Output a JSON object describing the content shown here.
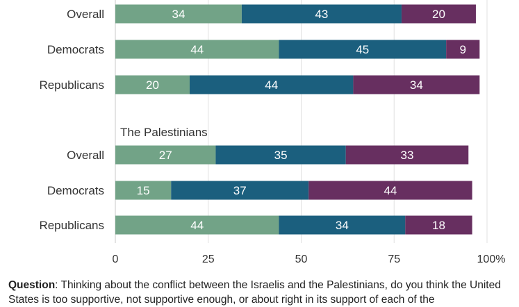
{
  "chart_data": {
    "type": "bar",
    "orientation": "horizontal",
    "stacked": true,
    "xlim": [
      0,
      100
    ],
    "ticks": [
      "0",
      "25",
      "50",
      "75",
      "100%"
    ],
    "tick_values": [
      0,
      25,
      50,
      75,
      100
    ],
    "series_colors": [
      "#72a387",
      "#1b5f7e",
      "#672f60"
    ],
    "groups": [
      {
        "title": "",
        "rows": [
          {
            "category": "Overall",
            "values": [
              34,
              43,
              20
            ]
          },
          {
            "category": "Democrats",
            "values": [
              44,
              45,
              9
            ]
          },
          {
            "category": "Republicans",
            "values": [
              20,
              44,
              34
            ]
          }
        ]
      },
      {
        "title": "The Palestinians",
        "rows": [
          {
            "category": "Overall",
            "values": [
              27,
              35,
              33
            ]
          },
          {
            "category": "Democrats",
            "values": [
              15,
              37,
              44
            ]
          },
          {
            "category": "Republicans",
            "values": [
              44,
              34,
              18
            ]
          }
        ]
      }
    ]
  },
  "caption": {
    "label": "Question",
    "text": ": Thinking about the conflict between the Israelis and the Palestinians, do you think the United States is too supportive, not supportive enough, or about right in its support of each of the"
  }
}
